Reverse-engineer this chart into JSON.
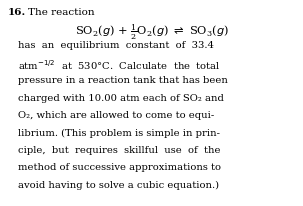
{
  "background_color": "#ffffff",
  "figsize": [
    3.03,
    2.06
  ],
  "dpi": 100,
  "number_label": "16.",
  "header_text": "The reaction",
  "body_lines": [
    "has  an  equilibrium  constant  of  33.4",
    "atm⁻¹ᐟ²  at  530°C.  Calculate  the  total",
    "pressure in a reaction tank that has been",
    "charged with 10.00 atm each of SO₂ and",
    "O₂, which are allowed to come to equi-",
    "librium. (This problem is simple in prin-",
    "ciple,  but  requires  skillful  use  of  the",
    "method of successive approximations to",
    "avoid having to solve a cubic equation.)"
  ],
  "fs_header": 7.5,
  "fs_body": 7.2,
  "fs_eq": 8.2
}
